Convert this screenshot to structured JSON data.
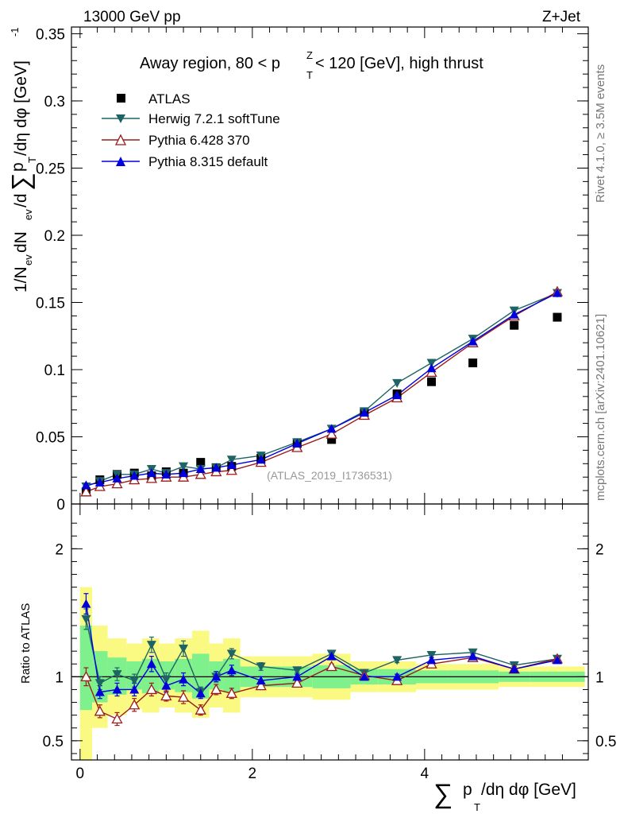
{
  "header": {
    "energy_label": "13000 GeV pp",
    "process_label": "Z+Jet",
    "side_label_top": "Rivet 4.1.0, ≥ 3.5M events",
    "side_label_bottom": "mcplots.cern.ch [arXiv:2401.10621]",
    "watermark": "(ATLAS_2019_I1736531)"
  },
  "colors": {
    "atlas": "#000000",
    "herwig": "#1f6464",
    "pythia6": "#9b1a1a",
    "pythia8": "#0000dd",
    "band_inner": "#7ef08c",
    "band_outer": "#fafa82"
  },
  "chart_data": [
    {
      "panel": "main",
      "type": "scatter",
      "title": "Away region, 80 < p_T^Z < 120 [GeV], high thrust",
      "title_parts": {
        "pre": "Away region, 80 < p",
        "sup": "Z",
        "sub": "T",
        "post": " < 120 [GeV], high thrust"
      },
      "ylabel": "1/N_ev dN_ev/d∑p_T/dη dφ [GeV]^-1",
      "ylabel_parts": {
        "a": "1/N",
        "a_sub": "ev",
        "b": " dN",
        "b_sub": "ev",
        "c": "/d",
        "sigma": "∑",
        "d": "p",
        "d_sub": "T",
        "e": "/dη dφ  [GeV]",
        "e_sup": "-1"
      },
      "xlim": [
        -0.1,
        5.9
      ],
      "ylim": [
        0,
        0.355
      ],
      "yticks": [
        0,
        0.05,
        0.1,
        0.15,
        0.2,
        0.25,
        0.3,
        0.35
      ],
      "ytick_labels": [
        "0",
        "0.05",
        "0.1",
        "0.15",
        "0.2",
        "0.25",
        "0.3",
        "0.35"
      ],
      "legend_position": "top-left",
      "series": [
        {
          "name": "ATLAS",
          "key": "atlas",
          "marker": "square",
          "x": [
            0.07,
            0.23,
            0.43,
            0.63,
            0.83,
            1.0,
            1.2,
            1.4,
            1.58,
            1.76,
            2.1,
            2.52,
            2.92,
            3.3,
            3.68,
            4.08,
            4.56,
            5.04,
            5.54
          ],
          "y": [
            0.009,
            0.018,
            0.022,
            0.023,
            0.021,
            0.024,
            0.023,
            0.031,
            0.027,
            0.028,
            0.034,
            0.045,
            0.048,
            0.068,
            0.082,
            0.091,
            0.105,
            0.133,
            0.139
          ]
        },
        {
          "name": "Herwig 7.2.1 softTune",
          "key": "herwig",
          "marker": "triangle-down",
          "x": [
            0.07,
            0.23,
            0.43,
            0.63,
            0.83,
            1.0,
            1.2,
            1.4,
            1.58,
            1.76,
            2.1,
            2.52,
            2.92,
            3.3,
            3.68,
            4.08,
            4.56,
            5.04,
            5.54
          ],
          "y": [
            0.013,
            0.017,
            0.022,
            0.022,
            0.026,
            0.023,
            0.028,
            0.026,
            0.027,
            0.033,
            0.036,
            0.046,
            0.056,
            0.069,
            0.09,
            0.105,
            0.123,
            0.144,
            0.157
          ]
        },
        {
          "name": "Pythia 6.428 370",
          "key": "pythia6",
          "marker": "triangle-up-open",
          "x": [
            0.07,
            0.23,
            0.43,
            0.63,
            0.83,
            1.0,
            1.2,
            1.4,
            1.58,
            1.76,
            2.1,
            2.52,
            2.92,
            3.3,
            3.68,
            4.08,
            4.56,
            5.04,
            5.54
          ],
          "y": [
            0.009,
            0.013,
            0.015,
            0.018,
            0.019,
            0.02,
            0.02,
            0.022,
            0.024,
            0.025,
            0.031,
            0.042,
            0.052,
            0.066,
            0.079,
            0.098,
            0.12,
            0.14,
            0.158
          ]
        },
        {
          "name": "Pythia 8.315 default",
          "key": "pythia8",
          "marker": "triangle-up",
          "x": [
            0.07,
            0.23,
            0.43,
            0.63,
            0.83,
            1.0,
            1.2,
            1.4,
            1.58,
            1.76,
            2.1,
            2.52,
            2.92,
            3.3,
            3.68,
            4.08,
            4.56,
            5.04,
            5.54
          ],
          "y": [
            0.014,
            0.016,
            0.019,
            0.021,
            0.023,
            0.022,
            0.023,
            0.026,
            0.027,
            0.029,
            0.033,
            0.045,
            0.056,
            0.068,
            0.081,
            0.101,
            0.121,
            0.141,
            0.157
          ]
        }
      ]
    },
    {
      "panel": "ratio",
      "type": "scatter",
      "ylabel": "Ratio to ATLAS",
      "xlabel": "∑p_T/dη dφ [GeV]",
      "xlabel_parts": {
        "sigma": "∑",
        "p": "p",
        "p_sub": "T",
        "rest": "/dη dφ [GeV]"
      },
      "xlim": [
        -0.1,
        5.9
      ],
      "ylim": [
        0.35,
        2.35
      ],
      "xticks": [
        0,
        2,
        4
      ],
      "xtick_labels": [
        "0",
        "2",
        "4"
      ],
      "yticks": [
        0.5,
        1,
        2
      ],
      "ytick_labels": [
        "0.5",
        "1",
        "2"
      ],
      "reference_line": 1,
      "bins": {
        "edges": [
          0,
          0.14,
          0.32,
          0.54,
          0.72,
          0.92,
          1.1,
          1.3,
          1.5,
          1.66,
          1.86,
          2.34,
          2.7,
          3.14,
          3.46,
          3.9,
          4.26,
          4.86,
          5.22,
          5.86
        ],
        "inner_low": [
          0.74,
          0.8,
          0.86,
          0.9,
          0.87,
          0.9,
          0.88,
          0.83,
          0.9,
          0.88,
          0.92,
          0.92,
          0.91,
          0.94,
          0.94,
          0.95,
          0.95,
          0.96,
          0.96
        ],
        "inner_high": [
          1.4,
          1.2,
          1.15,
          1.12,
          1.14,
          1.12,
          1.14,
          1.18,
          1.12,
          1.14,
          1.08,
          1.08,
          1.09,
          1.06,
          1.06,
          1.05,
          1.05,
          1.04,
          1.04
        ],
        "outer_low": [
          0.35,
          0.6,
          0.7,
          0.75,
          0.72,
          0.76,
          0.72,
          0.68,
          0.76,
          0.72,
          0.84,
          0.84,
          0.82,
          0.88,
          0.88,
          0.9,
          0.9,
          0.92,
          0.92
        ],
        "outer_high": [
          1.7,
          1.4,
          1.3,
          1.26,
          1.3,
          1.26,
          1.3,
          1.36,
          1.26,
          1.3,
          1.16,
          1.16,
          1.18,
          1.12,
          1.12,
          1.1,
          1.1,
          1.08,
          1.08
        ]
      },
      "series": [
        {
          "name": "Herwig 7.2.1 softTune",
          "key": "herwig",
          "marker": "triangle-down",
          "x": [
            0.07,
            0.23,
            0.43,
            0.63,
            0.83,
            1.0,
            1.2,
            1.4,
            1.58,
            1.76,
            2.1,
            2.52,
            2.92,
            3.3,
            3.68,
            4.08,
            4.56,
            5.04,
            5.54
          ],
          "y": [
            1.45,
            0.95,
            1.02,
            0.97,
            1.25,
            0.98,
            1.22,
            0.88,
            1.0,
            1.18,
            1.08,
            1.05,
            1.18,
            1.03,
            1.13,
            1.17,
            1.19,
            1.09,
            1.14
          ],
          "err": [
            0.08,
            0.05,
            0.05,
            0.05,
            0.06,
            0.05,
            0.06,
            0.04,
            0.04,
            0.04,
            0.03,
            0.02,
            0.02,
            0.02,
            0.02,
            0.02,
            0.02,
            0.02,
            0.02
          ]
        },
        {
          "name": "Pythia 6.428 370",
          "key": "pythia6",
          "marker": "triangle-up-open",
          "x": [
            0.07,
            0.23,
            0.43,
            0.63,
            0.83,
            1.0,
            1.2,
            1.4,
            1.58,
            1.76,
            2.1,
            2.52,
            2.92,
            3.3,
            3.68,
            4.08,
            4.56,
            5.04,
            5.54
          ],
          "y": [
            1.0,
            0.73,
            0.67,
            0.78,
            0.9,
            0.85,
            0.84,
            0.74,
            0.9,
            0.87,
            0.93,
            0.95,
            1.08,
            1.01,
            0.97,
            1.1,
            1.15,
            1.06,
            1.14
          ],
          "err": [
            0.07,
            0.05,
            0.05,
            0.05,
            0.05,
            0.04,
            0.05,
            0.04,
            0.04,
            0.04,
            0.03,
            0.02,
            0.02,
            0.02,
            0.02,
            0.02,
            0.02,
            0.02,
            0.02
          ]
        },
        {
          "name": "Pythia 8.315 default",
          "key": "pythia8",
          "marker": "triangle-up",
          "x": [
            0.07,
            0.23,
            0.43,
            0.63,
            0.83,
            1.0,
            1.2,
            1.4,
            1.58,
            1.76,
            2.1,
            2.52,
            2.92,
            3.3,
            3.68,
            4.08,
            4.56,
            5.04,
            5.54
          ],
          "y": [
            1.57,
            0.88,
            0.9,
            0.9,
            1.1,
            0.93,
            0.98,
            0.87,
            1.0,
            1.05,
            0.97,
            1.0,
            1.16,
            1.0,
            1.0,
            1.13,
            1.16,
            1.06,
            1.13
          ],
          "err": [
            0.08,
            0.05,
            0.05,
            0.05,
            0.06,
            0.05,
            0.05,
            0.04,
            0.04,
            0.04,
            0.03,
            0.02,
            0.02,
            0.02,
            0.02,
            0.02,
            0.02,
            0.02,
            0.02
          ]
        }
      ]
    }
  ]
}
